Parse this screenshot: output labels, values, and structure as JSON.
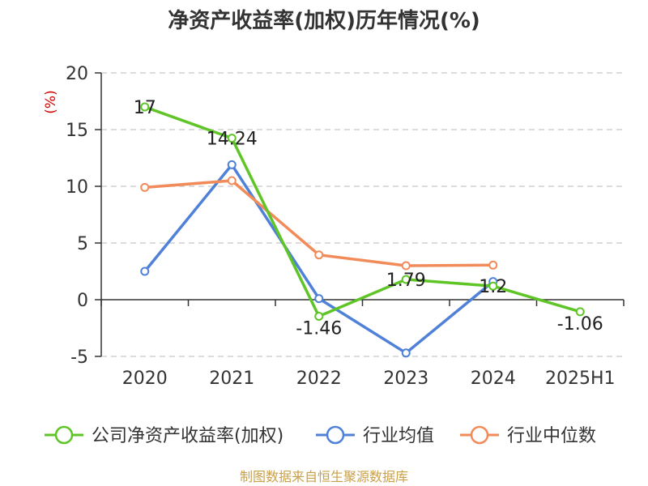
{
  "chart_data": {
    "type": "line",
    "title": "净资产收益率(加权)历年情况(%)",
    "ylabel": "(%)",
    "categories": [
      "2020",
      "2021",
      "2022",
      "2023",
      "2024",
      "2025H1"
    ],
    "yticks": [
      "20",
      "15",
      "10",
      "5",
      "0",
      "-5"
    ],
    "ylim": [
      -5,
      20
    ],
    "grid": true,
    "legend_position": "bottom",
    "series": [
      {
        "name": "公司净资产收益率(加权)",
        "color": "#5fc527",
        "values": [
          17,
          14.24,
          -1.46,
          1.79,
          1.2,
          -1.06
        ],
        "labels": [
          "17",
          "14.24",
          "-1.46",
          "1.79",
          "1.2",
          "-1.06"
        ]
      },
      {
        "name": "行业均值",
        "color": "#4f81d8",
        "values": [
          2.5,
          11.9,
          0.1,
          -4.7,
          1.6,
          null
        ]
      },
      {
        "name": "行业中位数",
        "color": "#f28b5a",
        "values": [
          9.9,
          10.5,
          3.95,
          3.0,
          3.05,
          null
        ]
      }
    ],
    "source": "制图数据来自恒生聚源数据库"
  }
}
